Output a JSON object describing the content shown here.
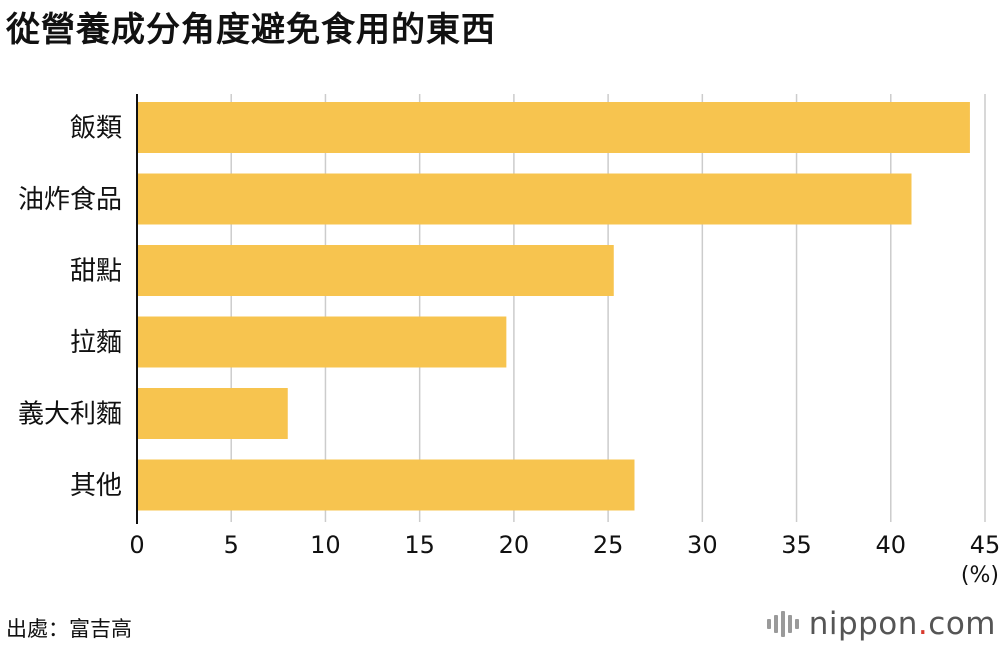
{
  "title": "從營養成分角度避免食用的東西",
  "source": "出處：富吉高",
  "brand": {
    "name": "nippon",
    "dot": ".",
    "tld": "com",
    "dot_color": "#d83a2d"
  },
  "colors": {
    "bar": "#f7c44f",
    "grid": "#cccccc",
    "axis": "#111111"
  },
  "chart_data": {
    "type": "bar",
    "orientation": "horizontal",
    "categories": [
      "飯類",
      "油炸食品",
      "甜點",
      "拉麵",
      "義大利麵",
      "其他"
    ],
    "values": [
      44.2,
      41.1,
      25.3,
      19.6,
      8.0,
      26.4
    ],
    "x_ticks": [
      0,
      5,
      10,
      15,
      20,
      25,
      30,
      35,
      40,
      45
    ],
    "xlim": [
      0,
      45
    ],
    "unit_label": "(%)",
    "grid": true,
    "legend": "none"
  }
}
